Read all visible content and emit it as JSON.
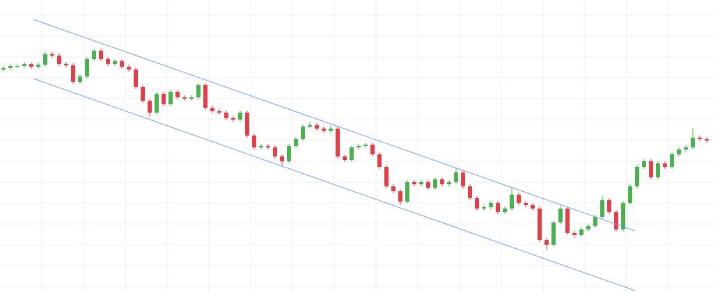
{
  "chart_data": {
    "type": "candlestick",
    "x": [
      0,
      1,
      2,
      3,
      4,
      5,
      6,
      7,
      8,
      9,
      10,
      11,
      12,
      13,
      14,
      15,
      16,
      17,
      18,
      19,
      20,
      21,
      22,
      23,
      24,
      25,
      26,
      27,
      28,
      29,
      30,
      31,
      32,
      33,
      34,
      35,
      36,
      37,
      38,
      39,
      40,
      41,
      42,
      43,
      44,
      45,
      46,
      47,
      48,
      49,
      50,
      51,
      52,
      53,
      54,
      55,
      56,
      57,
      58,
      59,
      60,
      61,
      62,
      63,
      64,
      65,
      66,
      67,
      68,
      69,
      70,
      71,
      72,
      73,
      74,
      75,
      76,
      77,
      78,
      79,
      80,
      81,
      82,
      83,
      84,
      85,
      86,
      87,
      88,
      89,
      90,
      91,
      92,
      93,
      94,
      95,
      96,
      97,
      98,
      99,
      100,
      101
    ],
    "open": [
      320,
      322,
      325,
      325,
      328,
      324,
      327,
      342,
      340,
      328,
      326,
      302,
      310,
      335,
      347,
      335,
      328,
      332,
      324,
      320,
      295,
      275,
      258,
      285,
      270,
      288,
      280,
      278,
      280,
      298,
      265,
      260,
      258,
      250,
      248,
      258,
      225,
      208,
      210,
      208,
      195,
      188,
      210,
      220,
      238,
      240,
      235,
      232,
      235,
      195,
      190,
      208,
      210,
      212,
      198,
      180,
      152,
      145,
      130,
      158,
      155,
      158,
      150,
      162,
      155,
      158,
      172,
      152,
      135,
      120,
      122,
      128,
      115,
      120,
      140,
      128,
      125,
      120,
      75,
      68,
      100,
      120,
      85,
      82,
      90,
      95,
      108,
      132,
      115,
      90,
      128,
      152,
      180,
      188,
      165,
      185,
      180,
      198,
      205,
      208,
      222,
      220
    ],
    "high": [
      325,
      328,
      328,
      331,
      331,
      330,
      345,
      345,
      343,
      331,
      329,
      313,
      338,
      350,
      350,
      338,
      335,
      335,
      327,
      323,
      298,
      278,
      288,
      288,
      291,
      291,
      283,
      283,
      301,
      301,
      268,
      263,
      261,
      253,
      261,
      261,
      228,
      213,
      213,
      211,
      198,
      213,
      223,
      241,
      245,
      243,
      238,
      240,
      238,
      198,
      211,
      213,
      215,
      215,
      201,
      183,
      155,
      148,
      161,
      161,
      161,
      161,
      165,
      165,
      161,
      178,
      175,
      155,
      138,
      125,
      131,
      131,
      123,
      150,
      143,
      131,
      128,
      123,
      78,
      103,
      125,
      123,
      88,
      93,
      98,
      111,
      138,
      135,
      118,
      131,
      155,
      183,
      191,
      191,
      188,
      188,
      201,
      208,
      211,
      235,
      225,
      223
    ],
    "low": [
      317,
      319,
      322,
      322,
      321,
      321,
      324,
      337,
      325,
      323,
      299,
      299,
      307,
      332,
      332,
      325,
      325,
      321,
      317,
      292,
      272,
      252,
      255,
      267,
      267,
      277,
      275,
      275,
      277,
      262,
      257,
      255,
      247,
      245,
      245,
      222,
      205,
      205,
      205,
      192,
      182,
      185,
      207,
      217,
      235,
      232,
      229,
      229,
      192,
      187,
      187,
      205,
      207,
      195,
      177,
      149,
      142,
      125,
      127,
      152,
      152,
      147,
      147,
      152,
      152,
      155,
      149,
      132,
      117,
      117,
      119,
      112,
      112,
      117,
      125,
      122,
      117,
      72,
      60,
      65,
      97,
      82,
      78,
      79,
      87,
      92,
      105,
      112,
      87,
      87,
      125,
      149,
      177,
      162,
      162,
      177,
      177,
      195,
      202,
      205,
      217,
      215
    ],
    "close": [
      322,
      325,
      325,
      328,
      324,
      327,
      342,
      340,
      328,
      326,
      302,
      310,
      335,
      347,
      335,
      328,
      332,
      324,
      320,
      295,
      275,
      258,
      285,
      270,
      288,
      280,
      278,
      280,
      298,
      265,
      260,
      258,
      250,
      248,
      258,
      225,
      208,
      210,
      208,
      195,
      188,
      210,
      220,
      238,
      240,
      235,
      232,
      235,
      195,
      190,
      208,
      210,
      212,
      198,
      180,
      152,
      145,
      130,
      158,
      155,
      158,
      150,
      162,
      155,
      158,
      172,
      152,
      135,
      120,
      122,
      128,
      115,
      120,
      140,
      128,
      125,
      120,
      75,
      68,
      100,
      120,
      85,
      82,
      90,
      95,
      108,
      132,
      115,
      90,
      128,
      152,
      180,
      188,
      165,
      185,
      180,
      198,
      205,
      208,
      222,
      220,
      218
    ],
    "up_color": "#4caf50",
    "down_color": "#e0404a",
    "lines": [
      {
        "color": "#6f9ff0",
        "x": [
          4.3,
          90.7
        ],
        "y": [
          392,
          88
        ]
      },
      {
        "color": "#6f9ff0",
        "x": [
          4.3,
          90.7
        ],
        "y": [
          307,
          2
        ]
      }
    ],
    "xlim": [
      -0.5,
      101.5
    ],
    "ylim": [
      0,
      420
    ],
    "xticks": [
      5.5,
      11.5,
      17.5,
      23.5,
      29.5,
      35.5,
      41.5,
      47.5,
      53.5,
      59.5,
      65.5,
      71.5,
      77.5,
      83.5,
      89.5,
      95.5
    ],
    "yticks": [
      398,
      368,
      338,
      308,
      278,
      248,
      218,
      188,
      158,
      128,
      98,
      68,
      38,
      8
    ],
    "grid": true,
    "grid_color": "#efefef"
  }
}
